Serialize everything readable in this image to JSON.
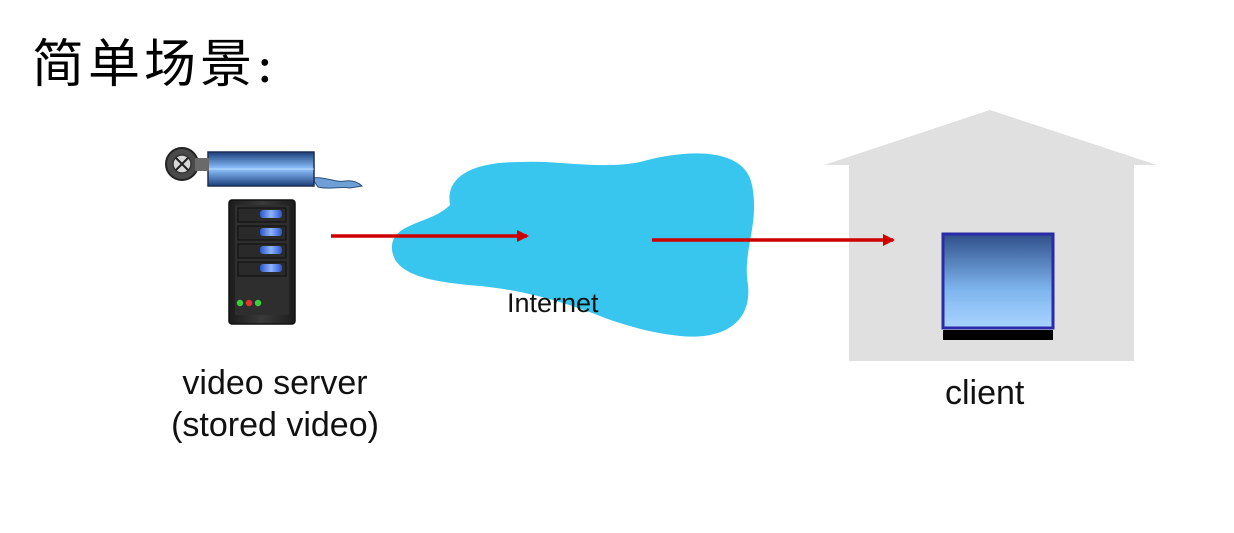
{
  "title": "简单场景:",
  "nodes": {
    "server": {
      "label_line1": "video server",
      "label_line2": "(stored video)",
      "icon": "server-tower-icon"
    },
    "internet": {
      "label": "Internet",
      "icon": "cloud-icon"
    },
    "client": {
      "label": "client",
      "icon": "monitor-icon"
    }
  },
  "media_icon": "film-reel-icon",
  "house_icon": "house-icon",
  "colors": {
    "cloud": "#38c6ef",
    "arrow": "#cc0000",
    "house": "#e0e0e0",
    "screen_frame": "#2a2aa8",
    "server_body": "#2b2b2b",
    "server_accent": "#3a6de0"
  },
  "edges": [
    {
      "from": "server",
      "to": "internet"
    },
    {
      "from": "internet",
      "to": "client"
    }
  ]
}
